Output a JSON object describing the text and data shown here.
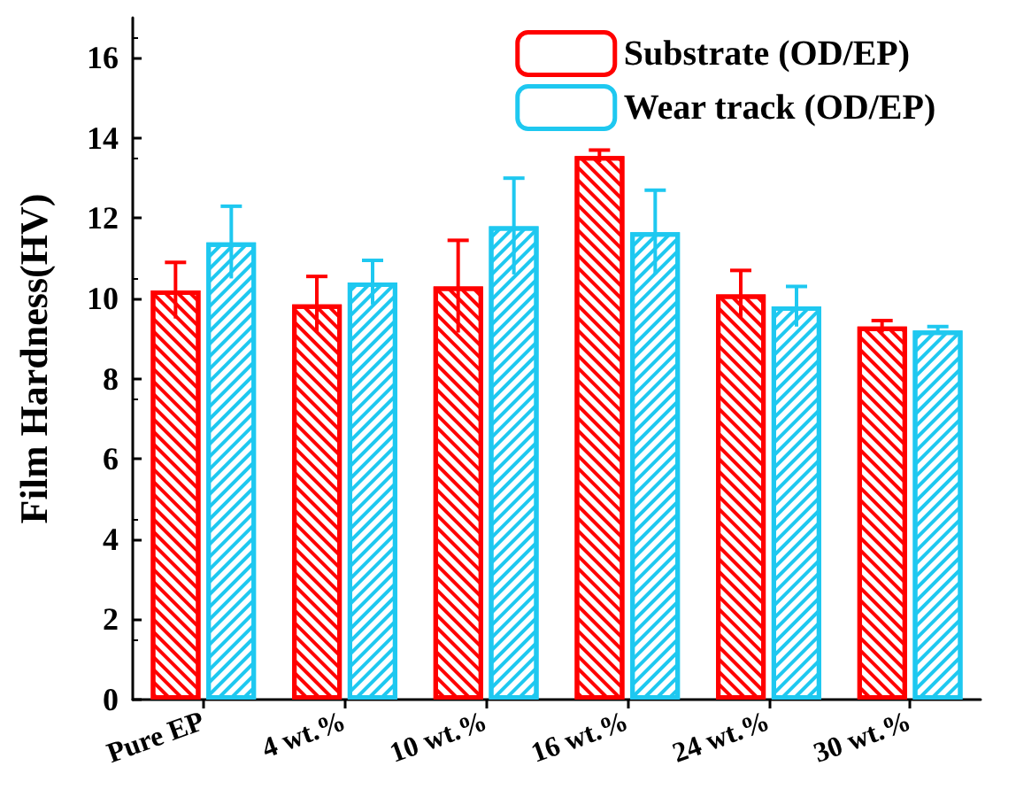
{
  "chart_data": {
    "type": "bar",
    "ylabel": "Film Hardness(HV)",
    "categories": [
      "Pure EP",
      "4 wt.%",
      "10 wt.%",
      "16 wt.%",
      "24 wt.%",
      "30 wt.%"
    ],
    "series": [
      {
        "name": "Substrate (OD/EP)",
        "color": "#ff0000",
        "values": [
          10.2,
          9.85,
          10.3,
          13.55,
          10.1,
          9.3
        ],
        "errors": [
          0.7,
          0.7,
          1.15,
          0.15,
          0.6,
          0.15
        ]
      },
      {
        "name": "Wear track (OD/EP)",
        "color": "#1ec8f0",
        "values": [
          11.4,
          10.4,
          11.8,
          11.65,
          9.8,
          9.2
        ],
        "errors": [
          0.9,
          0.55,
          1.2,
          1.05,
          0.5,
          0.1
        ]
      }
    ],
    "ylim": [
      0,
      17
    ],
    "yticks": [
      0,
      2,
      4,
      6,
      8,
      10,
      12,
      14,
      16
    ],
    "legend": "top right",
    "grid": false
  }
}
